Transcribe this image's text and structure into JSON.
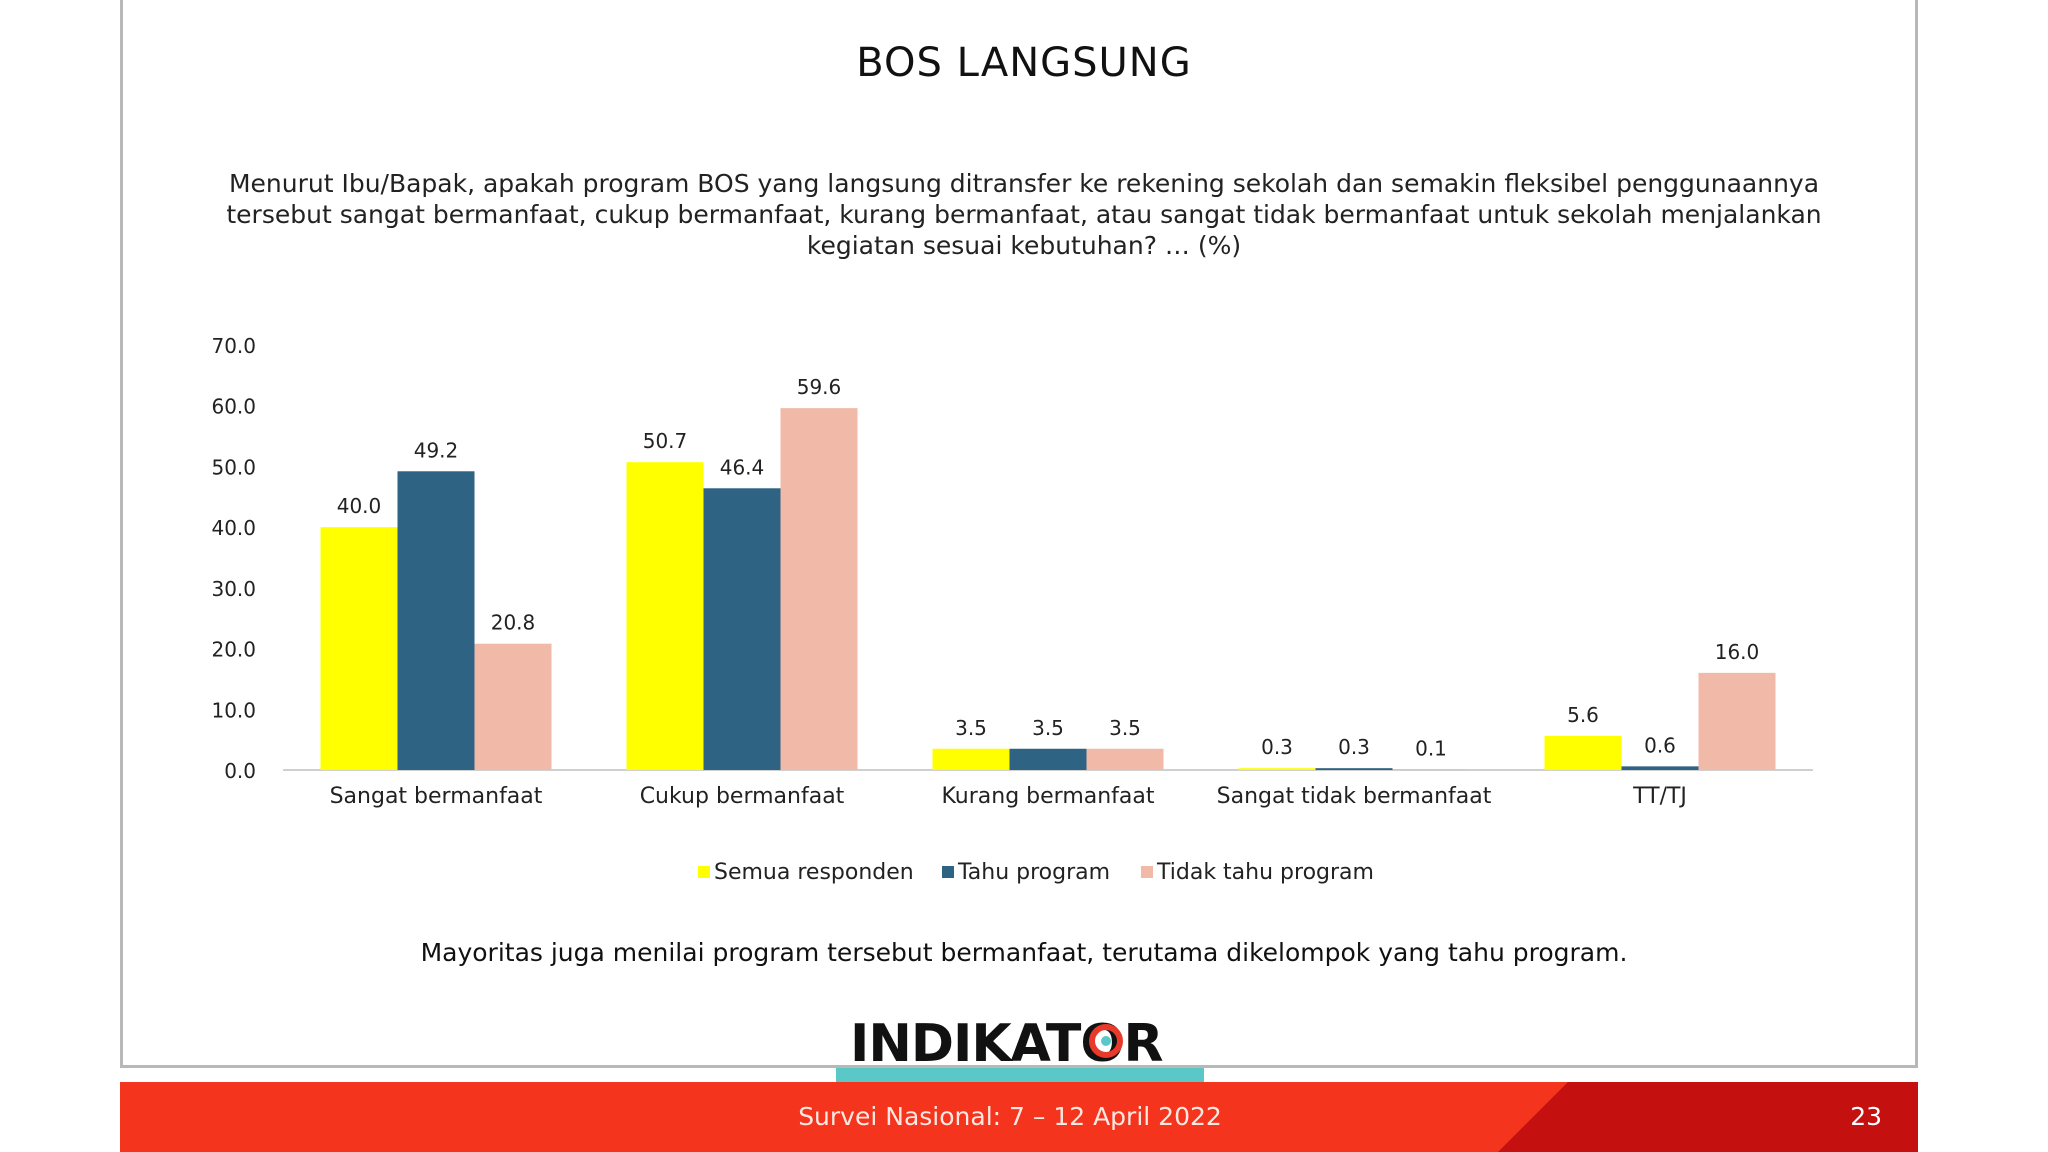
{
  "slide": {
    "title": "BOS LANGSUNG",
    "question": "Menurut Ibu/Bapak, apakah program BOS yang langsung ditransfer ke rekening sekolah dan semakin fleksibel penggunaannya tersebut sangat bermanfaat, cukup bermanfaat, kurang bermanfaat, atau sangat tidak bermanfaat untuk sekolah menjalankan kegiatan sesuai kebutuhan? … (%)",
    "conclusion": "Mayoritas juga menilai program tersebut bermanfaat, terutama dikelompok yang tahu program.",
    "logo_text": "INDIKATOR",
    "footer_text": "Survei Nasional: 7 – 12 April 2022",
    "page_number": "23"
  },
  "chart_data": {
    "type": "bar",
    "categories": [
      "Sangat bermanfaat",
      "Cukup bermanfaat",
      "Kurang bermanfaat",
      "Sangat tidak bermanfaat",
      "TT/TJ"
    ],
    "series": [
      {
        "name": "Semua responden",
        "color": "#ffff00",
        "values": [
          40.0,
          50.7,
          3.5,
          0.3,
          5.6
        ]
      },
      {
        "name": "Tahu program",
        "color": "#2e6383",
        "values": [
          49.2,
          46.4,
          3.5,
          0.3,
          0.6
        ]
      },
      {
        "name": "Tidak tahu program",
        "color": "#f0b9a8",
        "values": [
          20.8,
          59.6,
          3.5,
          0.1,
          16.0
        ]
      }
    ],
    "ylim": [
      0,
      70
    ],
    "yticks": [
      "0.0",
      "10.0",
      "20.0",
      "30.0",
      "40.0",
      "50.0",
      "60.0",
      "70.0"
    ],
    "grid": false,
    "legend_position": "bottom"
  },
  "colors": {
    "footer_red": "#f5341e",
    "footer_dark_red": "#c4100e",
    "teal_accent": "#5bc8c8",
    "logo_accent": "#e8392a"
  }
}
